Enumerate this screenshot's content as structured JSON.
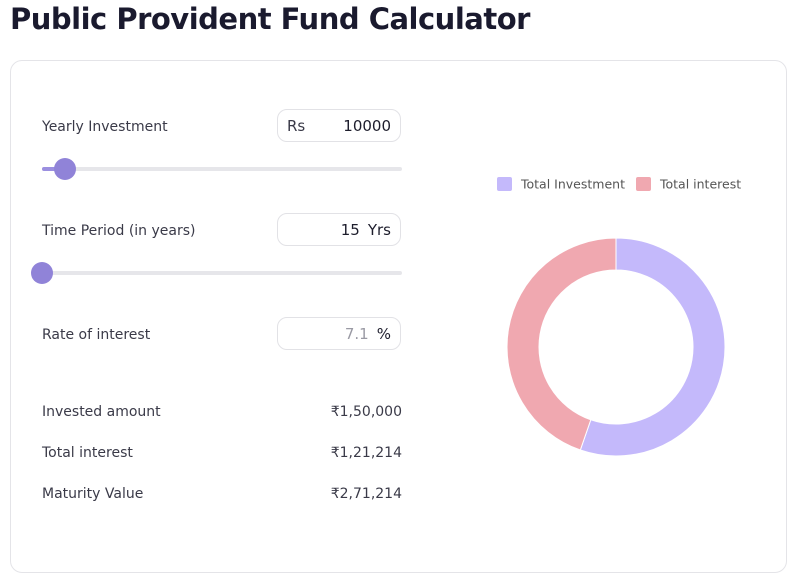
{
  "title": "Public Provident Fund Calculator",
  "inputs": [
    {
      "label": "Yearly Investment",
      "prefix": "Rs",
      "value": 10000
    },
    {
      "label": "Time Period (in years)",
      "value": 15,
      "suffix": "Yrs"
    },
    {
      "label": "Rate of interest",
      "value": 7.1,
      "suffix": "%"
    }
  ],
  "summary": [
    {
      "label": "Invested amount",
      "value": "₹1,50,000"
    },
    {
      "label": "Total interest",
      "value": "₹1,21,214"
    },
    {
      "label": "Maturity Value",
      "value": "₹2,71,214"
    }
  ],
  "chart_data": {
    "type": "doughnut",
    "categories": [
      "Total Investment",
      "Total interest"
    ],
    "values": [
      150000,
      121214
    ],
    "colors": [
      "#c4b9fb",
      "#f0a8b0"
    ],
    "legend": "top"
  }
}
